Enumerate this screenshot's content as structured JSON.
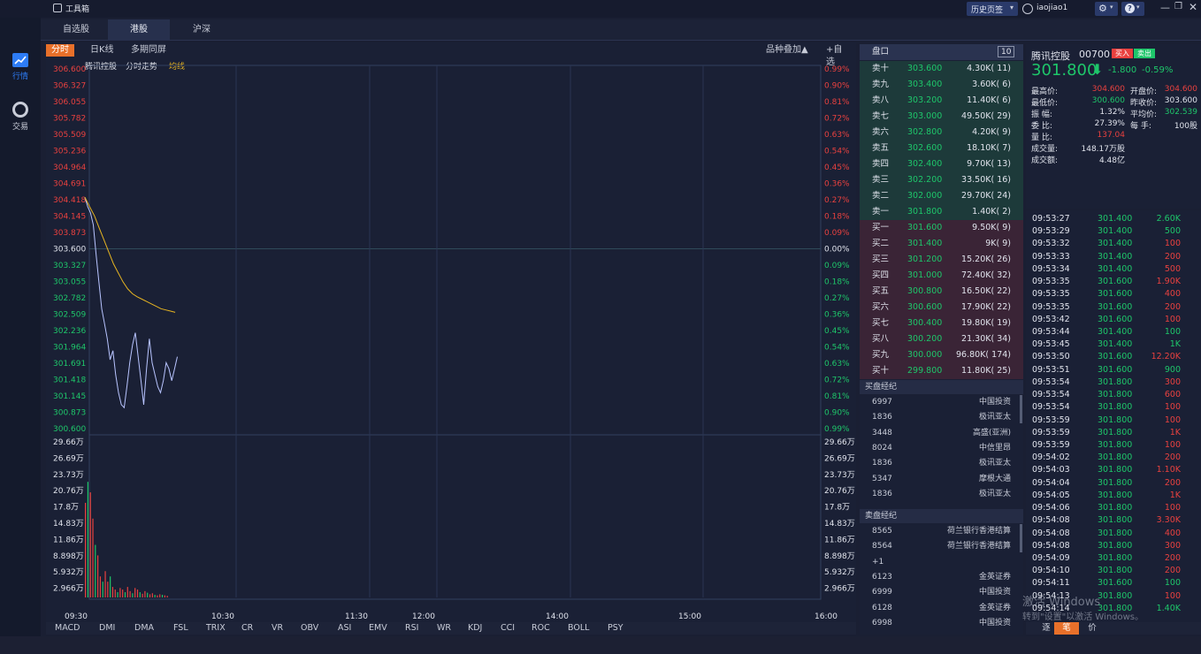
{
  "window": {
    "app_title": "工具箱",
    "history_btn": "历史页签",
    "username": "iaojiao1"
  },
  "sidebar": {
    "items": [
      {
        "label": "行情",
        "icon": "trend-chart-icon"
      },
      {
        "label": "交易",
        "icon": "trade-icon"
      }
    ]
  },
  "tabs": [
    "自选股",
    "港股",
    "沪深"
  ],
  "chart": {
    "subtabs": [
      "分时",
      "日K线",
      "多期同屏"
    ],
    "overlay_btn": "品种叠加▲",
    "add_watch": "+自选",
    "legend": {
      "name": "腾讯控股",
      "mode": "分时走势",
      "avg": "均线"
    },
    "price_ticks": [
      "306.600",
      "306.327",
      "306.055",
      "305.782",
      "305.509",
      "305.236",
      "304.964",
      "304.691",
      "304.418",
      "304.145",
      "303.873",
      "303.600",
      "303.327",
      "303.055",
      "302.782",
      "302.509",
      "302.236",
      "301.964",
      "301.691",
      "301.418",
      "301.145",
      "300.873",
      "300.600"
    ],
    "pct_ticks": [
      "0.99%",
      "0.90%",
      "0.81%",
      "0.72%",
      "0.63%",
      "0.54%",
      "0.45%",
      "0.36%",
      "0.27%",
      "0.18%",
      "0.09%",
      "0.00%",
      "0.09%",
      "0.18%",
      "0.27%",
      "0.36%",
      "0.45%",
      "0.54%",
      "0.63%",
      "0.72%",
      "0.81%",
      "0.90%",
      "0.99%"
    ],
    "vol_ticks": [
      "29.66万",
      "26.69万",
      "23.73万",
      "20.76万",
      "17.8万",
      "14.83万",
      "11.86万",
      "8.898万",
      "5.932万",
      "2.966万"
    ],
    "time_ticks": [
      "09:30",
      "10:30",
      "11:30",
      "12:00",
      "14:00",
      "15:00",
      "16:00"
    ],
    "price_series": [
      304.46,
      304.3,
      304.2,
      304.0,
      303.5,
      303.05,
      302.6,
      302.35,
      302.1,
      301.75,
      301.9,
      301.5,
      301.2,
      301.0,
      300.95,
      301.3,
      301.7,
      302.0,
      302.2,
      301.8,
      301.4,
      301.0,
      301.6,
      302.1,
      301.7,
      301.5,
      301.3,
      301.2,
      301.4,
      301.7,
      301.6,
      301.4,
      301.6,
      301.8
    ],
    "avg_series": [
      304.46,
      304.3,
      304.15,
      303.95,
      303.75,
      303.55,
      303.35,
      303.2,
      303.05,
      302.93,
      302.85,
      302.8,
      302.76,
      302.72,
      302.68,
      302.64,
      302.6,
      302.58,
      302.56,
      302.54
    ],
    "volume_series": [
      18,
      22,
      20,
      15,
      10,
      8,
      4,
      3,
      5,
      3,
      4,
      2,
      1.5,
      1,
      1.8,
      1.5,
      1,
      2,
      1.2,
      0.8,
      1.8,
      1.5,
      1,
      0.7,
      1.2,
      0.9,
      0.6,
      0.8,
      0.5,
      0.4,
      0.6,
      0.5,
      0.4,
      0.3
    ]
  },
  "indicators": [
    "MACD",
    "DMI",
    "DMA",
    "FSL",
    "TRIX",
    "CR",
    "VR",
    "OBV",
    "ASI",
    "EMV",
    "RSI",
    "WR",
    "KDJ",
    "CCI",
    "ROC",
    "BOLL",
    "PSY"
  ],
  "orderbook": {
    "header": "盘口",
    "depth": "10",
    "asks": [
      {
        "label": "卖十",
        "price": "303.600",
        "vol": "4.30K( 11)"
      },
      {
        "label": "卖九",
        "price": "303.400",
        "vol": "3.60K( 6)"
      },
      {
        "label": "卖八",
        "price": "303.200",
        "vol": "11.40K( 6)"
      },
      {
        "label": "卖七",
        "price": "303.000",
        "vol": "49.50K( 29)"
      },
      {
        "label": "卖六",
        "price": "302.800",
        "vol": "4.20K( 9)"
      },
      {
        "label": "卖五",
        "price": "302.600",
        "vol": "18.10K( 7)"
      },
      {
        "label": "卖四",
        "price": "302.400",
        "vol": "9.70K( 13)"
      },
      {
        "label": "卖三",
        "price": "302.200",
        "vol": "33.50K( 16)"
      },
      {
        "label": "卖二",
        "price": "302.000",
        "vol": "29.70K( 24)"
      },
      {
        "label": "卖一",
        "price": "301.800",
        "vol": "1.40K( 2)"
      }
    ],
    "bids": [
      {
        "label": "买一",
        "price": "301.600",
        "vol": "9.50K( 9)"
      },
      {
        "label": "买二",
        "price": "301.400",
        "vol": "9K( 9)"
      },
      {
        "label": "买三",
        "price": "301.200",
        "vol": "15.20K( 26)"
      },
      {
        "label": "买四",
        "price": "301.000",
        "vol": "72.40K( 32)"
      },
      {
        "label": "买五",
        "price": "300.800",
        "vol": "16.50K( 22)"
      },
      {
        "label": "买六",
        "price": "300.600",
        "vol": "17.90K( 22)"
      },
      {
        "label": "买七",
        "price": "300.400",
        "vol": "19.80K( 19)"
      },
      {
        "label": "买八",
        "price": "300.200",
        "vol": "21.30K( 34)"
      },
      {
        "label": "买九",
        "price": "300.000",
        "vol": "96.80K( 174)"
      },
      {
        "label": "买十",
        "price": "299.800",
        "vol": "11.80K( 25)"
      }
    ],
    "buy_broker_title": "买盘经纪",
    "buy_brokers": [
      {
        "id": "6997",
        "name": "中国投资"
      },
      {
        "id": "1836",
        "name": "极讯亚太"
      },
      {
        "id": "3448",
        "name": "高盛(亚洲)"
      },
      {
        "id": "8024",
        "name": "中信里昂"
      },
      {
        "id": "1836",
        "name": "极讯亚太"
      },
      {
        "id": "5347",
        "name": "摩根大通"
      },
      {
        "id": "1836",
        "name": "极讯亚太"
      }
    ],
    "sell_broker_title": "卖盘经纪",
    "sell_brokers": [
      {
        "id": "8565",
        "name": "荷兰银行香港结算"
      },
      {
        "id": "8564",
        "name": "荷兰银行香港结算"
      },
      {
        "id": "+1",
        "name": ""
      },
      {
        "id": "6123",
        "name": "金英证券"
      },
      {
        "id": "6999",
        "name": "中国投资"
      },
      {
        "id": "6128",
        "name": "金英证券"
      },
      {
        "id": "6998",
        "name": "中国投资"
      }
    ]
  },
  "quote": {
    "name": "腾讯控股",
    "code": "00700",
    "buy_tag": "买入",
    "sell_tag": "卖出",
    "price": "301.800",
    "change": "-1.800",
    "change_pct": "-0.59%",
    "stats_left": [
      {
        "k": "最高价:",
        "v": "304.600",
        "c": "red"
      },
      {
        "k": "最低价:",
        "v": "300.600",
        "c": "green"
      },
      {
        "k": "振  幅:",
        "v": "1.32%",
        "c": "white"
      },
      {
        "k": "委  比:",
        "v": "27.39%",
        "c": "white"
      },
      {
        "k": "量  比:",
        "v": "137.04",
        "c": "red"
      },
      {
        "k": "成交量:",
        "v": "148.17万股",
        "c": "white"
      },
      {
        "k": "成交额:",
        "v": "4.48亿",
        "c": "white"
      }
    ],
    "stats_right": [
      {
        "k": "开盘价:",
        "v": "304.600",
        "c": "red"
      },
      {
        "k": "昨收价:",
        "v": "303.600",
        "c": "white"
      },
      {
        "k": "平均价:",
        "v": "302.539",
        "c": "green"
      },
      {
        "k": "每  手:",
        "v": "100股",
        "c": "white"
      }
    ]
  },
  "ticks": [
    {
      "t": "09:53:27",
      "p": "301.400",
      "v": "2.60K",
      "c": "green"
    },
    {
      "t": "09:53:29",
      "p": "301.400",
      "v": "500",
      "c": "green"
    },
    {
      "t": "09:53:32",
      "p": "301.400",
      "v": "100",
      "c": "red"
    },
    {
      "t": "09:53:33",
      "p": "301.400",
      "v": "200",
      "c": "red"
    },
    {
      "t": "09:53:34",
      "p": "301.400",
      "v": "500",
      "c": "red"
    },
    {
      "t": "09:53:35",
      "p": "301.600",
      "v": "1.90K",
      "c": "red"
    },
    {
      "t": "09:53:35",
      "p": "301.600",
      "v": "400",
      "c": "red"
    },
    {
      "t": "09:53:35",
      "p": "301.600",
      "v": "200",
      "c": "red"
    },
    {
      "t": "09:53:42",
      "p": "301.600",
      "v": "100",
      "c": "red"
    },
    {
      "t": "09:53:44",
      "p": "301.400",
      "v": "100",
      "c": "green"
    },
    {
      "t": "09:53:45",
      "p": "301.400",
      "v": "1K",
      "c": "green"
    },
    {
      "t": "09:53:50",
      "p": "301.600",
      "v": "12.20K",
      "c": "red"
    },
    {
      "t": "09:53:51",
      "p": "301.600",
      "v": "900",
      "c": "green"
    },
    {
      "t": "09:53:54",
      "p": "301.800",
      "v": "300",
      "c": "red"
    },
    {
      "t": "09:53:54",
      "p": "301.800",
      "v": "600",
      "c": "red"
    },
    {
      "t": "09:53:54",
      "p": "301.800",
      "v": "100",
      "c": "red"
    },
    {
      "t": "09:53:59",
      "p": "301.800",
      "v": "100",
      "c": "red"
    },
    {
      "t": "09:53:59",
      "p": "301.800",
      "v": "1K",
      "c": "red"
    },
    {
      "t": "09:53:59",
      "p": "301.800",
      "v": "100",
      "c": "red"
    },
    {
      "t": "09:54:02",
      "p": "301.800",
      "v": "200",
      "c": "red"
    },
    {
      "t": "09:54:03",
      "p": "301.800",
      "v": "1.10K",
      "c": "red"
    },
    {
      "t": "09:54:04",
      "p": "301.800",
      "v": "200",
      "c": "red"
    },
    {
      "t": "09:54:05",
      "p": "301.800",
      "v": "1K",
      "c": "red"
    },
    {
      "t": "09:54:06",
      "p": "301.800",
      "v": "100",
      "c": "red"
    },
    {
      "t": "09:54:08",
      "p": "301.800",
      "v": "3.30K",
      "c": "red"
    },
    {
      "t": "09:54:08",
      "p": "301.800",
      "v": "400",
      "c": "red"
    },
    {
      "t": "09:54:08",
      "p": "301.800",
      "v": "300",
      "c": "red"
    },
    {
      "t": "09:54:09",
      "p": "301.800",
      "v": "200",
      "c": "red"
    },
    {
      "t": "09:54:10",
      "p": "301.800",
      "v": "200",
      "c": "red"
    },
    {
      "t": "09:54:11",
      "p": "301.600",
      "v": "100",
      "c": "green"
    },
    {
      "t": "09:54:13",
      "p": "301.800",
      "v": "100",
      "c": "red"
    },
    {
      "t": "09:54:14",
      "p": "301.800",
      "v": "1.40K",
      "c": "green"
    }
  ],
  "tick_tabs": [
    "逐",
    "笔",
    "价"
  ],
  "watermark": {
    "line1": "激活 Windows",
    "line2": "转到\"设置\"以激活 Windows。"
  },
  "colors": {
    "up": "#e9413f",
    "down": "#1ec66a",
    "avg": "#e6b422",
    "price_line": "#b8c4ff"
  }
}
